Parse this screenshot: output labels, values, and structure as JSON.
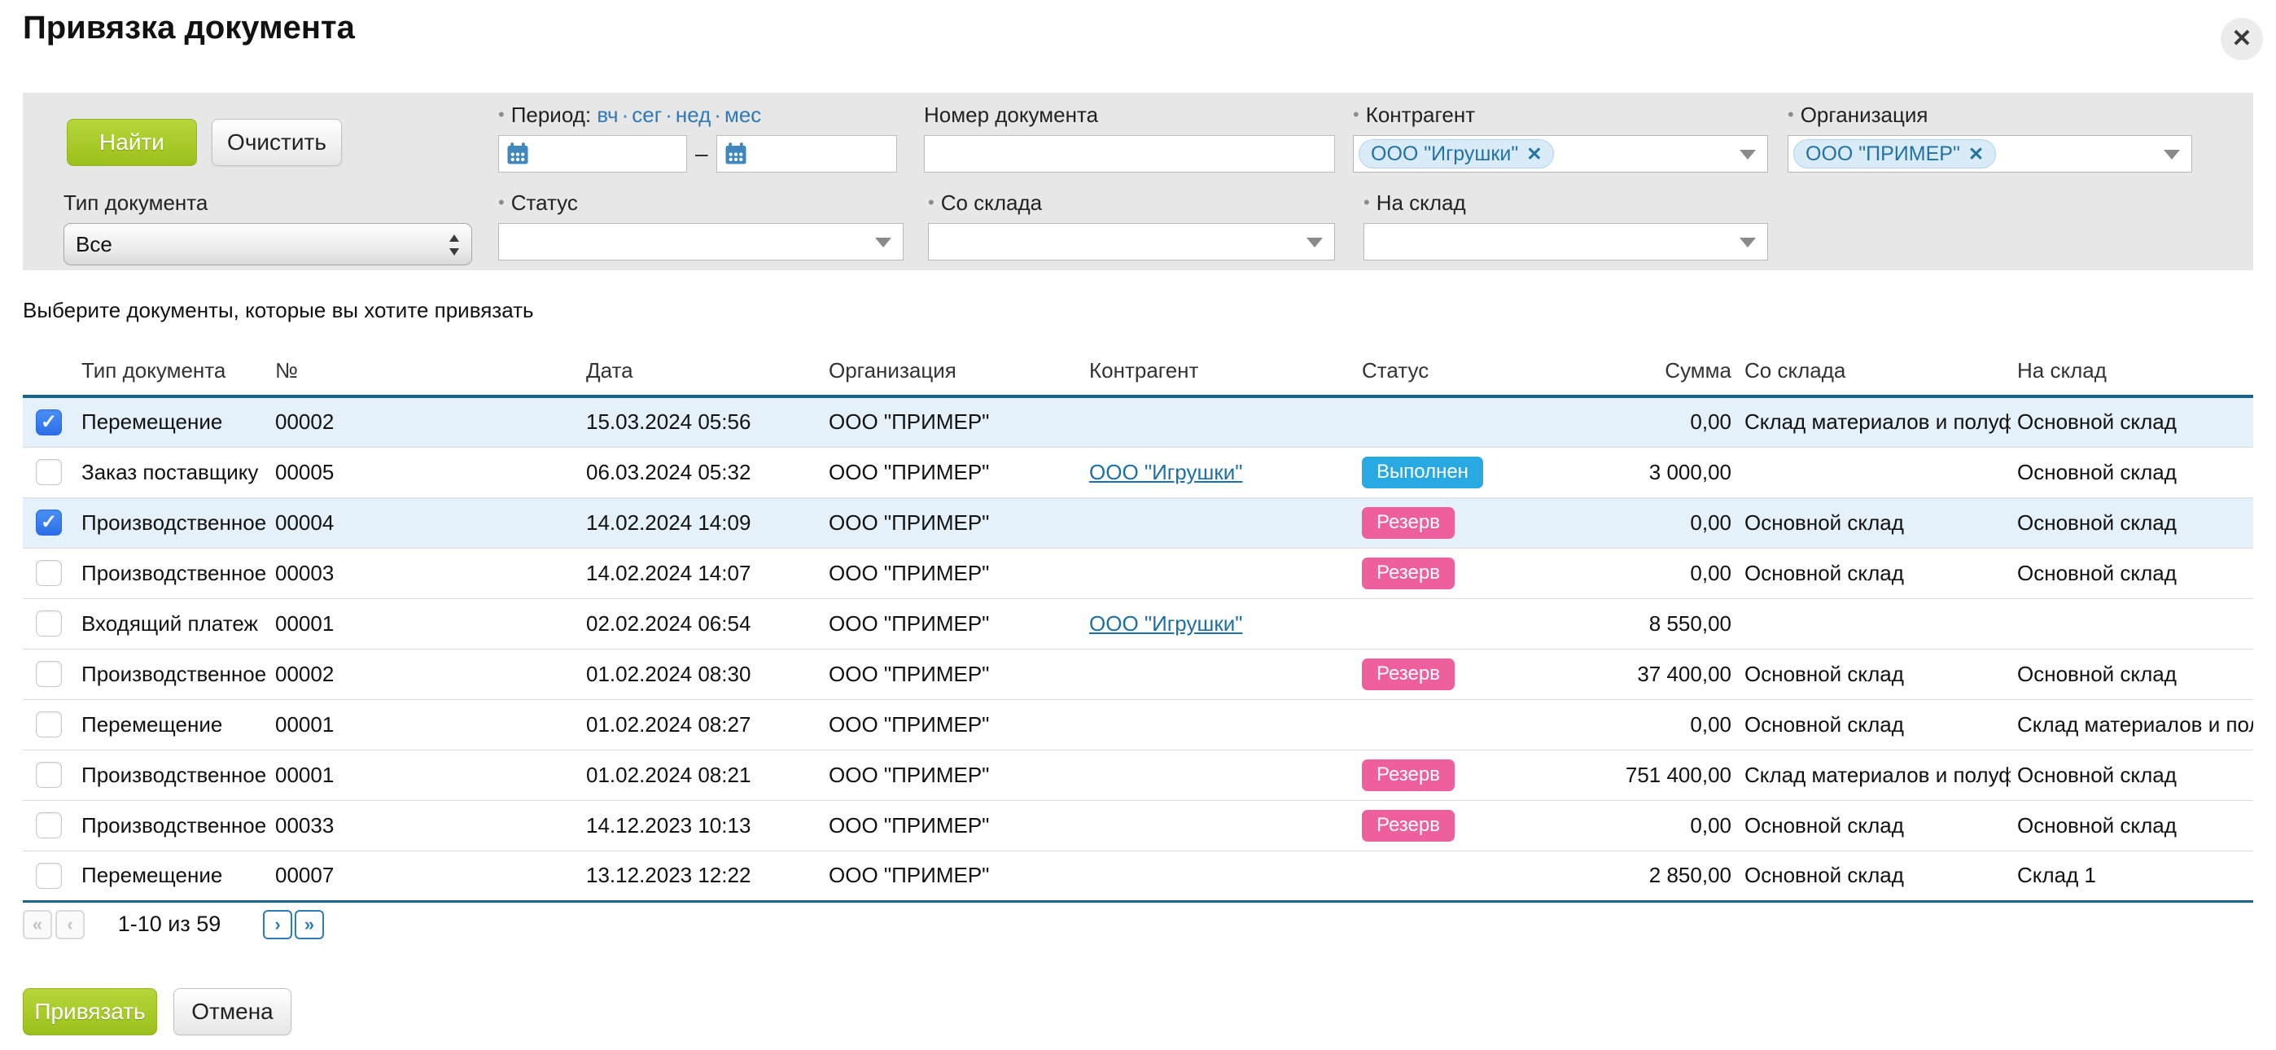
{
  "dialog": {
    "title": "Привязка документа",
    "close_icon": "✕",
    "subtitle": "Выберите документы, которые вы хотите привязать"
  },
  "filters": {
    "find_button": "Найти",
    "clear_button": "Очистить",
    "period": {
      "bullet": "•",
      "label": "Период:",
      "shortcuts": [
        "вч",
        "сег",
        "нед",
        "мес"
      ],
      "dot": "·",
      "range_separator": "–",
      "from_value": "",
      "to_value": ""
    },
    "doc_number": {
      "label": "Номер документа",
      "value": ""
    },
    "counterparty": {
      "bullet": "•",
      "label": "Контрагент",
      "tag": "ООО \"Игрушки\"",
      "tag_remove_icon": "✕"
    },
    "organization": {
      "bullet": "•",
      "label": "Организация",
      "tag": "ООО \"ПРИМЕР\"",
      "tag_remove_icon": "✕"
    },
    "doc_type": {
      "label": "Тип документа",
      "selected": "Все"
    },
    "status": {
      "bullet": "•",
      "label": "Статус",
      "value": ""
    },
    "from_store": {
      "bullet": "•",
      "label": "Со склада",
      "value": ""
    },
    "to_store": {
      "bullet": "•",
      "label": "На склад",
      "value": ""
    }
  },
  "table": {
    "check_icon": "✓",
    "columns": [
      "Тип документа",
      "№",
      "Дата",
      "Организация",
      "Контрагент",
      "Статус",
      "Сумма",
      "Со склада",
      "На склад"
    ],
    "rows": [
      {
        "checked": true,
        "type": "Перемещение",
        "number": "00002",
        "date": "15.03.2024 05:56",
        "organization": "ООО \"ПРИМЕР\"",
        "counterparty": "",
        "status": "",
        "status_color": "",
        "sum": "0,00",
        "from_store": "Склад материалов и полуфаб",
        "to_store": "Основной склад"
      },
      {
        "checked": false,
        "type": "Заказ поставщику",
        "number": "00005",
        "date": "06.03.2024 05:32",
        "organization": "ООО \"ПРИМЕР\"",
        "counterparty": "ООО \"Игрушки\"",
        "status": "Выполнен",
        "status_color": "blue",
        "sum": "3 000,00",
        "from_store": "",
        "to_store": "Основной склад"
      },
      {
        "checked": true,
        "type": "Производственное зад",
        "number": "00004",
        "date": "14.02.2024 14:09",
        "organization": "ООО \"ПРИМЕР\"",
        "counterparty": "",
        "status": "Резерв",
        "status_color": "pink",
        "sum": "0,00",
        "from_store": "Основной склад",
        "to_store": "Основной склад"
      },
      {
        "checked": false,
        "type": "Производственное зад",
        "number": "00003",
        "date": "14.02.2024 14:07",
        "organization": "ООО \"ПРИМЕР\"",
        "counterparty": "",
        "status": "Резерв",
        "status_color": "pink",
        "sum": "0,00",
        "from_store": "Основной склад",
        "to_store": "Основной склад"
      },
      {
        "checked": false,
        "type": "Входящий платеж",
        "number": "00001",
        "date": "02.02.2024 06:54",
        "organization": "ООО \"ПРИМЕР\"",
        "counterparty": "ООО \"Игрушки\"",
        "status": "",
        "status_color": "",
        "sum": "8 550,00",
        "from_store": "",
        "to_store": ""
      },
      {
        "checked": false,
        "type": "Производственное зад",
        "number": "00002",
        "date": "01.02.2024 08:30",
        "organization": "ООО \"ПРИМЕР\"",
        "counterparty": "",
        "status": "Резерв",
        "status_color": "pink",
        "sum": "37 400,00",
        "from_store": "Основной склад",
        "to_store": "Основной склад"
      },
      {
        "checked": false,
        "type": "Перемещение",
        "number": "00001",
        "date": "01.02.2024 08:27",
        "organization": "ООО \"ПРИМЕР\"",
        "counterparty": "",
        "status": "",
        "status_color": "",
        "sum": "0,00",
        "from_store": "Основной склад",
        "to_store": "Склад материалов и полуфаб"
      },
      {
        "checked": false,
        "type": "Производственное зад",
        "number": "00001",
        "date": "01.02.2024 08:21",
        "organization": "ООО \"ПРИМЕР\"",
        "counterparty": "",
        "status": "Резерв",
        "status_color": "pink",
        "sum": "751 400,00",
        "from_store": "Склад материалов и полуфаб",
        "to_store": "Основной склад"
      },
      {
        "checked": false,
        "type": "Производственное зад",
        "number": "00033",
        "date": "14.12.2023 10:13",
        "organization": "ООО \"ПРИМЕР\"",
        "counterparty": "",
        "status": "Резерв",
        "status_color": "pink",
        "sum": "0,00",
        "from_store": "Основной склад",
        "to_store": "Основной склад"
      },
      {
        "checked": false,
        "type": "Перемещение",
        "number": "00007",
        "date": "13.12.2023 12:22",
        "organization": "ООО \"ПРИМЕР\"",
        "counterparty": "",
        "status": "",
        "status_color": "",
        "sum": "2 850,00",
        "from_store": "Основной склад",
        "to_store": "Склад 1"
      }
    ]
  },
  "pagination": {
    "first_icon": "«",
    "prev_icon": "‹",
    "range_label": "1-10 из 59",
    "next_icon": "›",
    "last_icon": "»"
  },
  "footer": {
    "bind_button": "Привязать",
    "cancel_button": "Отмена"
  },
  "colors": {
    "primary_button_green": "#a8cc29",
    "status_done_blue": "#29a9e1",
    "status_reserve_pink": "#ee5f9d",
    "table_border_blue": "#19638f",
    "selected_row_bg": "#e4f1fa",
    "link_blue": "#1d6fa5",
    "tag_bg": "#d8ebf7",
    "filter_panel_bg": "#e7e7e7",
    "checkbox_checked_blue": "#2d6ee8"
  }
}
